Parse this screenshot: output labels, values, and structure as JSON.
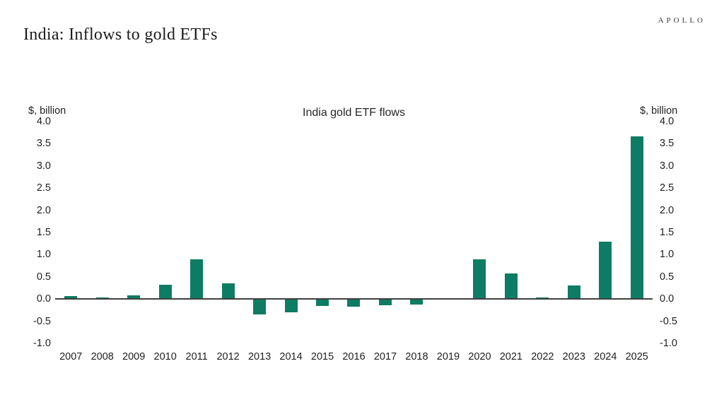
{
  "header": {
    "title": "India: Inflows to gold ETFs",
    "brand": "APOLLO"
  },
  "chart_data": {
    "type": "bar",
    "title": "India gold ETF flows",
    "unit_label_left": "$, billion",
    "unit_label_right": "$, billion",
    "categories": [
      "2007",
      "2008",
      "2009",
      "2010",
      "2011",
      "2012",
      "2013",
      "2014",
      "2015",
      "2016",
      "2017",
      "2018",
      "2019",
      "2020",
      "2021",
      "2022",
      "2023",
      "2024",
      "2025"
    ],
    "values": [
      0.07,
      0.04,
      0.08,
      0.32,
      0.9,
      0.35,
      -0.35,
      -0.3,
      -0.16,
      -0.18,
      -0.14,
      -0.12,
      0.0,
      0.9,
      0.57,
      0.03,
      0.31,
      1.3,
      3.66
    ],
    "ylim": [
      -1.0,
      4.0
    ],
    "yticks": [
      "4.0",
      "3.5",
      "3.0",
      "2.5",
      "2.0",
      "1.5",
      "1.0",
      "0.5",
      "0.0",
      "-0.5",
      "-1.0"
    ],
    "grid": false,
    "legend": null,
    "bar_color": "#0e7c62",
    "axis_color": "#3f3f3f"
  }
}
